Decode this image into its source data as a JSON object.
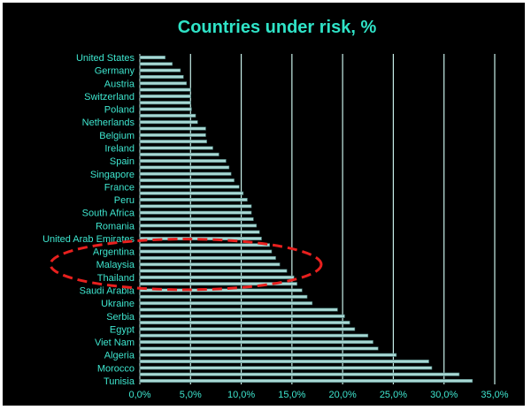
{
  "chart_data": {
    "type": "bar",
    "orientation": "horizontal",
    "title": "Countries under risk, %",
    "categories": [
      "United States",
      "",
      "Germany",
      "",
      "Austria",
      "",
      "Switzerland",
      "",
      "Poland",
      "",
      "Netherlands",
      "",
      "Belgium",
      "",
      "Ireland",
      "",
      "Spain",
      "",
      "Singapore",
      "",
      "France",
      "",
      "Peru",
      "",
      "South Africa",
      "",
      "Romania",
      "",
      "United Arab Emirates",
      "",
      "Argentina",
      "",
      "Malaysia",
      "",
      "Thailand",
      "",
      "Saudi Arabia",
      "",
      "Ukraine",
      "",
      "Serbia",
      "",
      "Egypt",
      "",
      "Viet Nam",
      "",
      "Algeria",
      "",
      "Morocco",
      "",
      "Tunisia"
    ],
    "values": [
      2.5,
      3.2,
      4.0,
      4.3,
      4.6,
      5.0,
      5.0,
      5.0,
      5.1,
      5.5,
      5.7,
      6.5,
      6.5,
      6.6,
      7.2,
      7.8,
      8.5,
      8.8,
      9.0,
      9.3,
      9.8,
      10.2,
      10.6,
      11.0,
      11.0,
      11.2,
      11.5,
      11.8,
      12.0,
      12.8,
      13.0,
      13.4,
      13.8,
      14.5,
      15.2,
      15.5,
      16.0,
      16.5,
      17.0,
      19.5,
      20.2,
      20.7,
      21.2,
      22.5,
      23.0,
      23.5,
      25.3,
      28.5,
      28.8,
      31.5,
      32.8
    ],
    "xlim": [
      0,
      35
    ],
    "xticks": [
      "0,0%",
      "5,0%",
      "10,0%",
      "15,0%",
      "20,0%",
      "25,0%",
      "30,0%",
      "35,0%"
    ],
    "xtick_values": [
      0,
      5,
      10,
      15,
      20,
      25,
      30,
      35
    ],
    "grid": true,
    "highlight": {
      "categories": [
        "Argentina",
        "Malaysia",
        "Thailand"
      ],
      "style": "dashed red ellipse"
    },
    "colors": {
      "background": "#000000",
      "bar_fill": "#a8d8d4",
      "bar_edge": "#4a7d7a",
      "text": "#3ee6cf",
      "title": "#2fe3c7",
      "grid": "#c8f0ea",
      "highlight": "#e8201e"
    }
  }
}
